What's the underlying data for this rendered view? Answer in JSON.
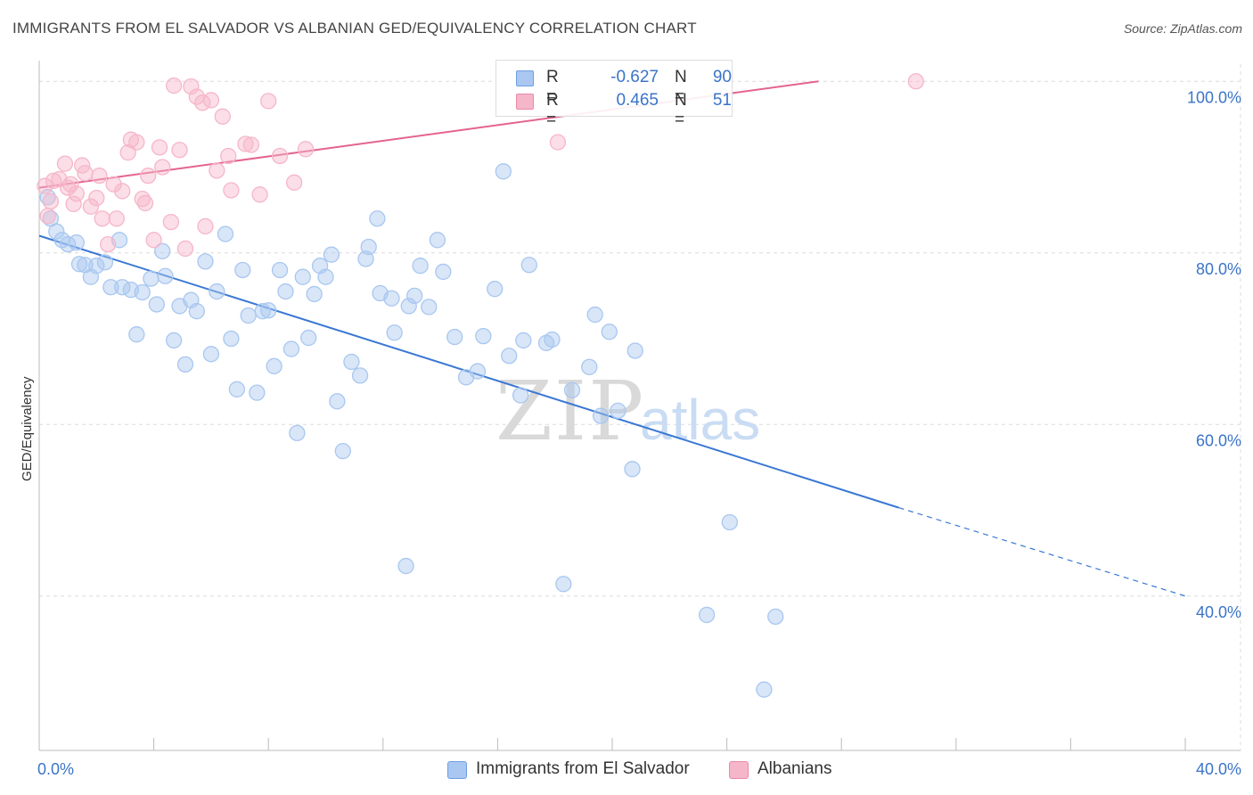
{
  "title": "IMMIGRANTS FROM EL SALVADOR VS ALBANIAN GED/EQUIVALENCY CORRELATION CHART",
  "source": "Source: ZipAtlas.com",
  "watermark": {
    "zip": "ZIP",
    "atlas": "atlas"
  },
  "legend": {
    "rows": [
      {
        "r_label": "R =",
        "r_value": "-0.627",
        "n_label": "N =",
        "n_value": "90",
        "color": "#a9c7f0"
      },
      {
        "r_label": "R =",
        "r_value": "0.465",
        "n_label": "N =",
        "n_value": "51",
        "color": "#f6b6c9"
      }
    ]
  },
  "bottom_legend": [
    "Immigrants from El Salvador",
    "Albanians"
  ],
  "chart_data": {
    "type": "scatter",
    "title": "IMMIGRANTS FROM EL SALVADOR VS ALBANIAN GED/EQUIVALENCY CORRELATION CHART",
    "ylabel": "GED/Equivalency",
    "xlabel": "",
    "x_tick_labels": [
      "0.0%",
      "40.0%"
    ],
    "y_tick_labels": [
      "100.0%",
      "80.0%",
      "60.0%",
      "40.0%"
    ],
    "xlim": [
      0,
      40
    ],
    "ylim": [
      22,
      102
    ],
    "grid": true,
    "series": [
      {
        "name": "Immigrants from El Salvador",
        "color": "#3a78d4",
        "fill": "#a9c7f0",
        "trend": {
          "x0": 0,
          "y0": 82.0,
          "x1": 30.0,
          "y1": 50.3,
          "dashed_to_x": 40,
          "dashed_to_y": 40.0
        },
        "points": [
          [
            0.3,
            86.5
          ],
          [
            0.4,
            84.0
          ],
          [
            0.6,
            82.5
          ],
          [
            0.8,
            81.5
          ],
          [
            1.0,
            81.0
          ],
          [
            1.3,
            81.2
          ],
          [
            1.4,
            78.7
          ],
          [
            1.6,
            78.6
          ],
          [
            1.8,
            77.2
          ],
          [
            2.0,
            78.5
          ],
          [
            2.3,
            78.9
          ],
          [
            2.5,
            76.0
          ],
          [
            2.8,
            81.5
          ],
          [
            2.9,
            76.0
          ],
          [
            3.2,
            75.7
          ],
          [
            3.4,
            70.5
          ],
          [
            3.6,
            75.4
          ],
          [
            3.9,
            77.0
          ],
          [
            4.1,
            74.0
          ],
          [
            4.3,
            80.2
          ],
          [
            4.4,
            77.3
          ],
          [
            4.7,
            69.8
          ],
          [
            4.9,
            73.8
          ],
          [
            5.1,
            67.0
          ],
          [
            5.3,
            74.5
          ],
          [
            5.5,
            73.2
          ],
          [
            5.8,
            79.0
          ],
          [
            6.0,
            68.2
          ],
          [
            6.2,
            75.5
          ],
          [
            6.5,
            82.2
          ],
          [
            6.7,
            70.0
          ],
          [
            6.9,
            64.1
          ],
          [
            7.1,
            78.0
          ],
          [
            7.3,
            72.7
          ],
          [
            7.6,
            63.7
          ],
          [
            7.8,
            73.2
          ],
          [
            8.0,
            73.3
          ],
          [
            8.2,
            66.8
          ],
          [
            8.4,
            78.0
          ],
          [
            8.6,
            75.5
          ],
          [
            8.8,
            68.8
          ],
          [
            9.0,
            59.0
          ],
          [
            9.2,
            77.2
          ],
          [
            9.4,
            70.1
          ],
          [
            9.6,
            75.2
          ],
          [
            9.8,
            78.5
          ],
          [
            10.0,
            77.2
          ],
          [
            10.2,
            79.8
          ],
          [
            10.4,
            62.7
          ],
          [
            10.6,
            56.9
          ],
          [
            10.9,
            67.3
          ],
          [
            11.2,
            65.7
          ],
          [
            11.4,
            79.3
          ],
          [
            11.5,
            80.7
          ],
          [
            11.8,
            84.0
          ],
          [
            11.9,
            75.3
          ],
          [
            12.3,
            74.7
          ],
          [
            12.4,
            70.7
          ],
          [
            12.8,
            43.5
          ],
          [
            12.9,
            73.8
          ],
          [
            13.1,
            75.0
          ],
          [
            13.3,
            78.5
          ],
          [
            13.6,
            73.7
          ],
          [
            13.9,
            81.5
          ],
          [
            14.1,
            77.8
          ],
          [
            14.5,
            70.2
          ],
          [
            14.9,
            65.5
          ],
          [
            15.3,
            66.2
          ],
          [
            15.5,
            70.3
          ],
          [
            15.9,
            75.8
          ],
          [
            16.2,
            89.5
          ],
          [
            16.4,
            68.0
          ],
          [
            16.8,
            63.4
          ],
          [
            16.9,
            69.8
          ],
          [
            17.1,
            78.6
          ],
          [
            17.7,
            69.5
          ],
          [
            17.9,
            69.9
          ],
          [
            18.3,
            41.4
          ],
          [
            18.6,
            64.0
          ],
          [
            19.2,
            66.7
          ],
          [
            19.4,
            72.8
          ],
          [
            19.6,
            61.0
          ],
          [
            19.9,
            70.8
          ],
          [
            20.2,
            61.6
          ],
          [
            20.7,
            54.8
          ],
          [
            20.8,
            68.6
          ],
          [
            23.3,
            37.8
          ],
          [
            24.1,
            48.6
          ],
          [
            25.3,
            29.1
          ],
          [
            25.7,
            37.6
          ]
        ]
      },
      {
        "name": "Albanians",
        "color": "#e4638f",
        "fill": "#f6b6c9",
        "trend": {
          "x0": 0,
          "y0": 87.6,
          "x1": 27.2,
          "y1": 100.0
        },
        "points": [
          [
            0.2,
            87.8
          ],
          [
            0.3,
            84.3
          ],
          [
            0.5,
            88.4
          ],
          [
            0.7,
            88.6
          ],
          [
            0.9,
            90.4
          ],
          [
            1.0,
            87.6
          ],
          [
            1.2,
            85.7
          ],
          [
            1.3,
            86.9
          ],
          [
            1.5,
            90.2
          ],
          [
            1.6,
            89.3
          ],
          [
            1.8,
            85.4
          ],
          [
            2.0,
            86.4
          ],
          [
            2.1,
            89.0
          ],
          [
            2.2,
            84.0
          ],
          [
            2.4,
            81.0
          ],
          [
            2.6,
            88.0
          ],
          [
            2.7,
            84.0
          ],
          [
            2.9,
            87.2
          ],
          [
            3.1,
            91.7
          ],
          [
            3.2,
            93.2
          ],
          [
            3.4,
            92.9
          ],
          [
            3.6,
            86.3
          ],
          [
            3.7,
            85.8
          ],
          [
            3.8,
            89.0
          ],
          [
            4.0,
            81.5
          ],
          [
            4.2,
            92.3
          ],
          [
            4.3,
            90.0
          ],
          [
            4.6,
            83.6
          ],
          [
            4.7,
            99.5
          ],
          [
            4.9,
            92.0
          ],
          [
            5.1,
            80.5
          ],
          [
            5.3,
            99.4
          ],
          [
            5.5,
            98.2
          ],
          [
            5.7,
            97.5
          ],
          [
            5.8,
            83.1
          ],
          [
            6.0,
            97.8
          ],
          [
            6.2,
            89.6
          ],
          [
            6.4,
            95.9
          ],
          [
            6.6,
            91.3
          ],
          [
            6.7,
            87.3
          ],
          [
            7.2,
            92.7
          ],
          [
            7.4,
            92.6
          ],
          [
            7.7,
            86.8
          ],
          [
            8.0,
            97.7
          ],
          [
            8.4,
            91.3
          ],
          [
            8.9,
            88.2
          ],
          [
            9.3,
            92.1
          ],
          [
            18.1,
            92.9
          ],
          [
            30.6,
            100.0
          ],
          [
            0.4,
            86.0
          ],
          [
            1.1,
            88.0
          ]
        ]
      }
    ]
  }
}
